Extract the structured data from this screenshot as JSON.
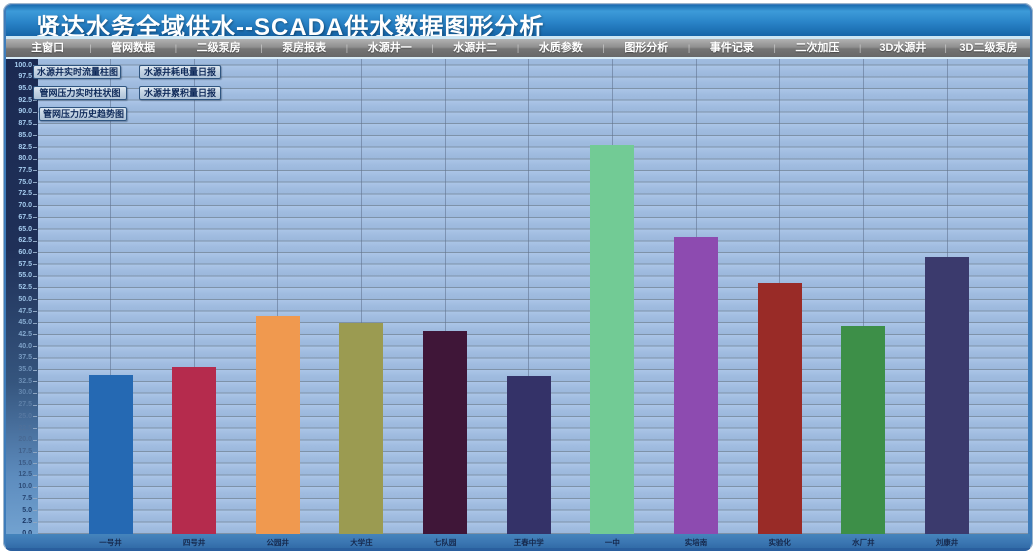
{
  "window": {
    "title": "贤达水务全域供水--SCADA供水数据图形分析"
  },
  "menu": {
    "items": [
      "主窗口",
      "管网数据",
      "二级泵房",
      "泵房报表",
      "水源井一",
      "水源井二",
      "水质参数",
      "图形分析",
      "事件记录",
      "二次加压",
      "3D水源井",
      "3D二级泵房"
    ]
  },
  "buttons": [
    "水源井实时流量柱图",
    "管网压力实时柱状图",
    "管网压力历史趋势图",
    "水源井耗电量日报",
    "水源井累积量日报"
  ],
  "chart_data": {
    "type": "bar",
    "title": "",
    "xlabel": "",
    "ylabel": "",
    "categories": [
      "一号井",
      "四号井",
      "公园井",
      "大学庄",
      "七队园",
      "王春中学",
      "一中",
      "实培南",
      "实验化",
      "水厂井",
      "刘康井"
    ],
    "values": [
      33.9,
      35.7,
      46.5,
      45.0,
      43.3,
      33.7,
      83.0,
      63.4,
      53.6,
      44.4,
      59.1
    ],
    "bar_colors": [
      "#2569b3",
      "#b52b4d",
      "#f0994f",
      "#9b9b51",
      "#3f1638",
      "#343268",
      "#72cb95",
      "#8d4bb0",
      "#992b27",
      "#3d8f48",
      "#3b3a6d"
    ],
    "ylim": [
      0,
      100
    ],
    "ytick_step": 2.5,
    "grid": true,
    "legend": "none"
  },
  "colors": {
    "frame": "#3e7cba",
    "titlebar_top": "#3d9bd9",
    "titlebar_bottom": "#1565a8",
    "menubar": "#8f8f8f",
    "plot_bg": "#a5c0e4",
    "axis_strip_top": "#1b2a52",
    "axis_strip_bottom": "#72a2d0",
    "xband": "#3b76b2",
    "button_bg": "#c2d2e2",
    "button_text": "#0f2a5a"
  }
}
